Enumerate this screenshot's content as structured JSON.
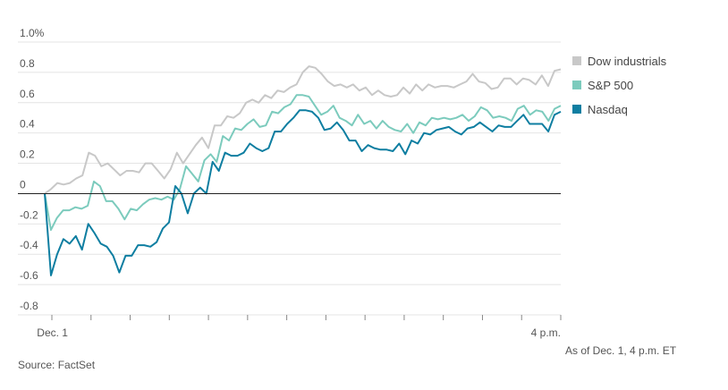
{
  "chart_data": {
    "type": "line",
    "title": "",
    "xlabel": "",
    "ylabel": "",
    "ylim": [
      -0.8,
      1.0
    ],
    "y_ticks": [
      -0.8,
      -0.6,
      -0.4,
      -0.2,
      0,
      0.2,
      0.4,
      0.6,
      0.8,
      1.0
    ],
    "y_tick_labels": [
      "-0.8",
      "-0.6",
      "-0.4",
      "-0.2",
      "0",
      "0.2",
      "0.4",
      "0.6",
      "0.8",
      "1.0%"
    ],
    "x_tick_labels": [
      {
        "label": "Dec. 1",
        "t": 0.015
      },
      {
        "label": "4 p.m.",
        "t": 1.0
      }
    ],
    "grid": true,
    "legend_position": "right",
    "series": [
      {
        "name": "Dow industrials",
        "color": "#c8c8c8",
        "values": [
          0,
          0.03,
          0.07,
          0.06,
          0.07,
          0.1,
          0.12,
          0.27,
          0.25,
          0.18,
          0.2,
          0.16,
          0.12,
          0.15,
          0.15,
          0.14,
          0.2,
          0.2,
          0.15,
          0.1,
          0.16,
          0.27,
          0.2,
          0.26,
          0.32,
          0.37,
          0.3,
          0.45,
          0.45,
          0.51,
          0.5,
          0.53,
          0.6,
          0.62,
          0.6,
          0.65,
          0.63,
          0.68,
          0.67,
          0.7,
          0.72,
          0.8,
          0.84,
          0.83,
          0.79,
          0.74,
          0.71,
          0.72,
          0.7,
          0.72,
          0.68,
          0.7,
          0.65,
          0.68,
          0.65,
          0.64,
          0.65,
          0.7,
          0.66,
          0.72,
          0.68,
          0.72,
          0.7,
          0.71,
          0.71,
          0.7,
          0.72,
          0.74,
          0.79,
          0.74,
          0.73,
          0.69,
          0.7,
          0.76,
          0.76,
          0.72,
          0.76,
          0.75,
          0.72,
          0.78,
          0.71,
          0.81,
          0.82
        ]
      },
      {
        "name": "S&P 500",
        "color": "#7ccbbd",
        "values": [
          0,
          -0.24,
          -0.16,
          -0.11,
          -0.11,
          -0.09,
          -0.1,
          -0.08,
          0.08,
          0.05,
          -0.05,
          -0.05,
          -0.1,
          -0.17,
          -0.1,
          -0.11,
          -0.07,
          -0.04,
          -0.03,
          -0.04,
          -0.02,
          -0.04,
          0.03,
          0.18,
          0.13,
          0.08,
          0.22,
          0.26,
          0.21,
          0.38,
          0.35,
          0.43,
          0.42,
          0.46,
          0.49,
          0.44,
          0.45,
          0.54,
          0.53,
          0.57,
          0.59,
          0.65,
          0.65,
          0.64,
          0.58,
          0.52,
          0.54,
          0.58,
          0.5,
          0.48,
          0.45,
          0.52,
          0.46,
          0.48,
          0.43,
          0.48,
          0.44,
          0.42,
          0.41,
          0.46,
          0.4,
          0.47,
          0.45,
          0.5,
          0.49,
          0.5,
          0.49,
          0.5,
          0.52,
          0.48,
          0.51,
          0.57,
          0.55,
          0.5,
          0.51,
          0.5,
          0.48,
          0.56,
          0.58,
          0.52,
          0.55,
          0.54,
          0.48,
          0.56,
          0.58
        ]
      },
      {
        "name": "Nasdaq",
        "color": "#0e7ea1",
        "values": [
          0,
          -0.54,
          -0.4,
          -0.3,
          -0.33,
          -0.28,
          -0.37,
          -0.2,
          -0.26,
          -0.33,
          -0.35,
          -0.41,
          -0.52,
          -0.41,
          -0.41,
          -0.34,
          -0.34,
          -0.35,
          -0.32,
          -0.23,
          -0.19,
          0.05,
          0.0,
          -0.13,
          0.0,
          0.04,
          0.0,
          0.21,
          0.15,
          0.27,
          0.25,
          0.25,
          0.27,
          0.33,
          0.3,
          0.28,
          0.3,
          0.41,
          0.41,
          0.46,
          0.5,
          0.55,
          0.55,
          0.54,
          0.5,
          0.42,
          0.43,
          0.47,
          0.42,
          0.35,
          0.35,
          0.28,
          0.32,
          0.3,
          0.29,
          0.29,
          0.28,
          0.33,
          0.26,
          0.35,
          0.33,
          0.4,
          0.39,
          0.42,
          0.43,
          0.44,
          0.41,
          0.39,
          0.43,
          0.44,
          0.47,
          0.44,
          0.41,
          0.45,
          0.44,
          0.44,
          0.48,
          0.52,
          0.46,
          0.46,
          0.46,
          0.41,
          0.52,
          0.54
        ]
      }
    ]
  },
  "notes": {
    "as_of": "As of Dec. 1, 4 p.m. ET",
    "source": "Source: FactSet"
  }
}
